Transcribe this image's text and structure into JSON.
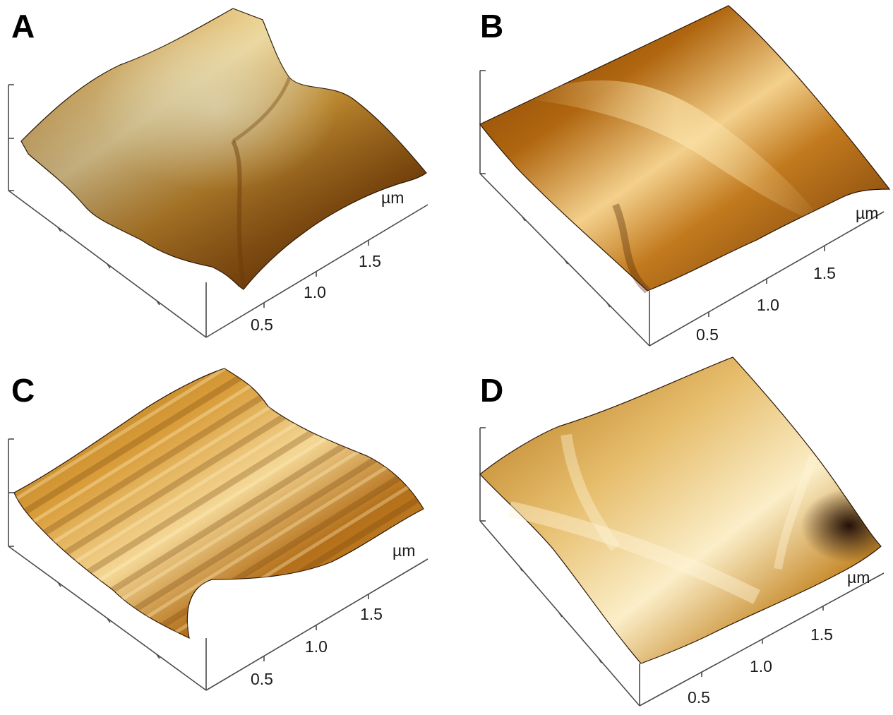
{
  "panels": [
    {
      "id": "A",
      "label": "A",
      "unit": "µm",
      "ticks": [
        "0.5",
        "1.0",
        "1.5"
      ],
      "colors": {
        "light": "#f6e2a6",
        "mid": "#c8881e",
        "dark": "#6a3a08",
        "base": "#b97716"
      }
    },
    {
      "id": "B",
      "label": "B",
      "unit": "µm",
      "ticks": [
        "0.5",
        "1.0",
        "1.5"
      ],
      "colors": {
        "light": "#f3d08c",
        "mid": "#b0660f",
        "dark": "#5a2d05",
        "base": "#a45d0d"
      }
    },
    {
      "id": "C",
      "label": "C",
      "unit": "µm",
      "ticks": [
        "0.5",
        "1.0",
        "1.5"
      ],
      "colors": {
        "light": "#f4d795",
        "mid": "#c07e19",
        "dark": "#6e3d08",
        "base": "#b5751a"
      }
    },
    {
      "id": "D",
      "label": "D",
      "unit": "µm",
      "ticks": [
        "0.5",
        "1.0",
        "1.5"
      ],
      "colors": {
        "light": "#fbeec8",
        "mid": "#cf9a3c",
        "dark": "#3a1603",
        "base": "#c88d30"
      }
    }
  ]
}
